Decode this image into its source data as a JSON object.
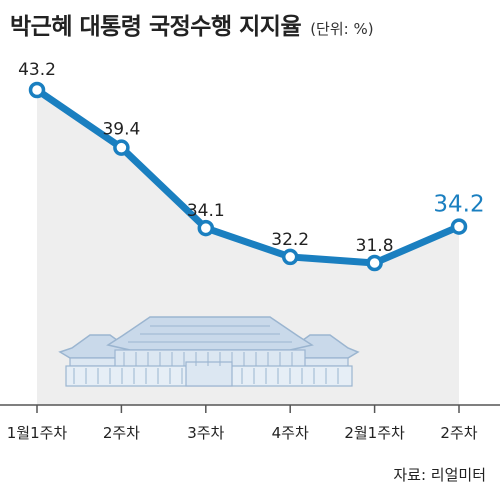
{
  "header": {
    "title": "박근혜 대통령 국정수행 지지율",
    "unit": "(단위: %)"
  },
  "chart_data": {
    "type": "line",
    "title": "박근혜 대통령 국정수행 지지율",
    "unit": "(단위: %)",
    "categories": [
      "1월1주차",
      "2주차",
      "3주차",
      "4주차",
      "2월1주차",
      "2주차"
    ],
    "series": [
      {
        "values": [
          43.2,
          39.4,
          34.1,
          32.2,
          31.8,
          34.2
        ]
      }
    ],
    "value_labels": [
      "43.2",
      "39.4",
      "34.1",
      "32.2",
      "31.8",
      "34.2"
    ],
    "highlight_index": 5,
    "xlabel": "",
    "ylabel": "",
    "grid": false,
    "legend": "none",
    "colors": {
      "line": "#1a7fc0",
      "highlight_label": "#1a7fc0",
      "area": "#eeeeee",
      "marker_fill": "#ffffff",
      "building": "#dce7f2",
      "building_stroke": "#9bb5d0"
    }
  },
  "illustration": {
    "icon": "blue-house-building-icon"
  },
  "footer": {
    "source": "자료: 리얼미터"
  }
}
